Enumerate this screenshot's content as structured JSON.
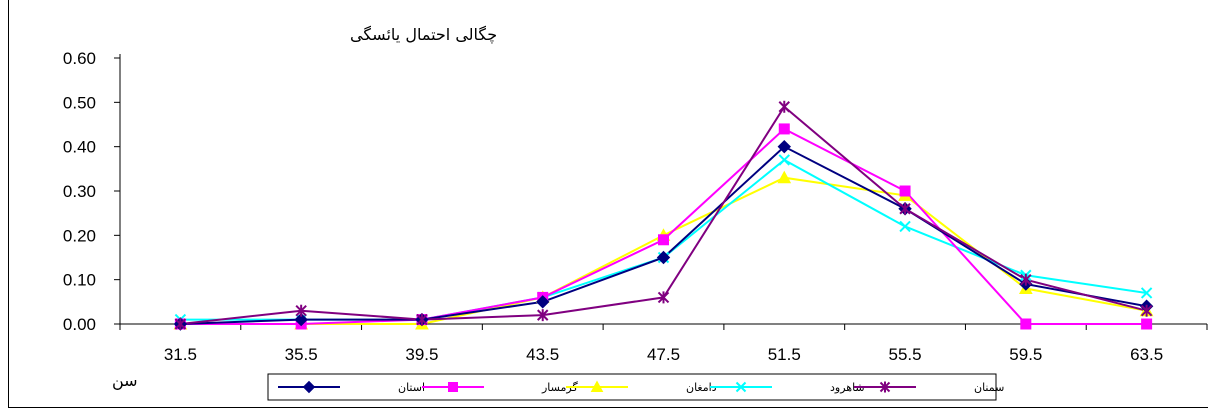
{
  "chart_data": {
    "type": "line",
    "ylabel": "چگالی احتمال یائسگی",
    "xlabel": "سن",
    "categories": [
      "31.5",
      "35.5",
      "39.5",
      "43.5",
      "47.5",
      "51.5",
      "55.5",
      "59.5",
      "63.5"
    ],
    "y_ticks": [
      "0.00",
      "0.10",
      "0.20",
      "0.30",
      "0.40",
      "0.50",
      "0.60"
    ],
    "ylim": [
      0,
      0.6
    ],
    "grid": false,
    "legend_position": "bottom",
    "series": [
      {
        "name": "استان",
        "color": "#000080",
        "marker": "diamond",
        "values": [
          0.0,
          0.01,
          0.01,
          0.05,
          0.15,
          0.4,
          0.26,
          0.09,
          0.04
        ]
      },
      {
        "name": "گرمسار",
        "color": "#ff00ff",
        "marker": "square",
        "values": [
          0.0,
          0.0,
          0.01,
          0.06,
          0.19,
          0.44,
          0.3,
          0.0,
          0.0
        ]
      },
      {
        "name": "دامغان",
        "color": "#ffff00",
        "marker": "triangle",
        "values": [
          0.0,
          0.0,
          0.0,
          0.06,
          0.2,
          0.33,
          0.29,
          0.08,
          0.03
        ]
      },
      {
        "name": "شاهرود",
        "color": "#00ffff",
        "marker": "x",
        "values": [
          0.01,
          0.01,
          0.01,
          0.06,
          0.15,
          0.37,
          0.22,
          0.11,
          0.07
        ]
      },
      {
        "name": "سمنان",
        "color": "#800080",
        "marker": "star",
        "values": [
          0.0,
          0.03,
          0.01,
          0.02,
          0.06,
          0.49,
          0.26,
          0.1,
          0.03
        ]
      }
    ]
  }
}
